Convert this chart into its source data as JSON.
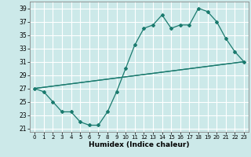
{
  "xlabel": "Humidex (Indice chaleur)",
  "xlim": [
    -0.5,
    23.5
  ],
  "ylim": [
    20.5,
    40
  ],
  "yticks": [
    21,
    23,
    25,
    27,
    29,
    31,
    33,
    35,
    37,
    39
  ],
  "xticks": [
    0,
    1,
    2,
    3,
    4,
    5,
    6,
    7,
    8,
    9,
    10,
    11,
    12,
    13,
    14,
    15,
    16,
    17,
    18,
    19,
    20,
    21,
    22,
    23
  ],
  "bg_color": "#cce9e9",
  "grid_color": "#ffffff",
  "line_color": "#1a7a6e",
  "line1_x": [
    0,
    1,
    2,
    3,
    4,
    5,
    6,
    7,
    8,
    9,
    10,
    11,
    12,
    13,
    14,
    15,
    16,
    17,
    18,
    19,
    20,
    21,
    22,
    23
  ],
  "line1_y": [
    27,
    26.5,
    25,
    23.5,
    23.5,
    22,
    21.5,
    21.5,
    23.5,
    26.5,
    30,
    33.5,
    36,
    36.5,
    38,
    36,
    36.5,
    36.5,
    39,
    38.5,
    37,
    34.5,
    32.5,
    31
  ],
  "line2_x": [
    0,
    23
  ],
  "line2_y": [
    27,
    31
  ],
  "line3_x": [
    0,
    23
  ],
  "line3_y": [
    27,
    31
  ]
}
